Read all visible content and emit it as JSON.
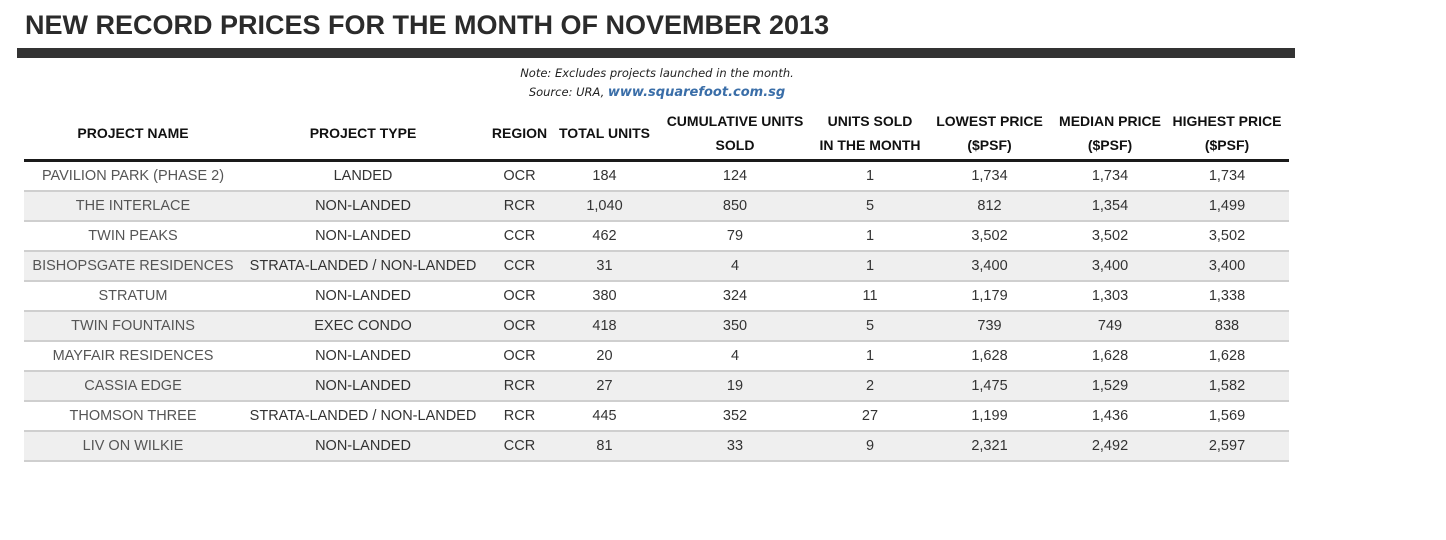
{
  "title": "NEW RECORD PRICES FOR THE MONTH OF NOVEMBER 2013",
  "note": "Note: Excludes projects launched in the month.",
  "source_prefix": "Source: URA,",
  "source_site": "www.squarefoot.com.sg",
  "headers": {
    "project_name": "PROJECT NAME",
    "project_type": "PROJECT TYPE",
    "region": "REGION",
    "total_units": "TOTAL UNITS",
    "cumulative_line1": "CUMULATIVE UNITS",
    "cumulative_line2": "SOLD",
    "month_line1": "UNITS SOLD",
    "month_line2": "IN THE MONTH",
    "lowest_line1": "LOWEST PRICE",
    "lowest_line2": "($PSF)",
    "median_line1": "MEDIAN PRICE",
    "median_line2": "($PSF)",
    "highest_line1": "HIGHEST PRICE",
    "highest_line2": "($PSF)"
  },
  "rows": [
    {
      "name": "PAVILION PARK (PHASE 2)",
      "type": "LANDED",
      "region": "OCR",
      "total": "184",
      "cumulative": "124",
      "month": "1",
      "lowest": "1,734",
      "median": "1,734",
      "highest": "1,734"
    },
    {
      "name": "THE INTERLACE",
      "type": "NON-LANDED",
      "region": "RCR",
      "total": "1,040",
      "cumulative": "850",
      "month": "5",
      "lowest": "812",
      "median": "1,354",
      "highest": "1,499"
    },
    {
      "name": "TWIN PEAKS",
      "type": "NON-LANDED",
      "region": "CCR",
      "total": "462",
      "cumulative": "79",
      "month": "1",
      "lowest": "3,502",
      "median": "3,502",
      "highest": "3,502"
    },
    {
      "name": "BISHOPSGATE RESIDENCES",
      "type": "STRATA-LANDED / NON-LANDED",
      "region": "CCR",
      "total": "31",
      "cumulative": "4",
      "month": "1",
      "lowest": "3,400",
      "median": "3,400",
      "highest": "3,400"
    },
    {
      "name": "STRATUM",
      "type": "NON-LANDED",
      "region": "OCR",
      "total": "380",
      "cumulative": "324",
      "month": "11",
      "lowest": "1,179",
      "median": "1,303",
      "highest": "1,338"
    },
    {
      "name": "TWIN FOUNTAINS",
      "type": "EXEC CONDO",
      "region": "OCR",
      "total": "418",
      "cumulative": "350",
      "month": "5",
      "lowest": "739",
      "median": "749",
      "highest": "838"
    },
    {
      "name": "MAYFAIR RESIDENCES",
      "type": "NON-LANDED",
      "region": "OCR",
      "total": "20",
      "cumulative": "4",
      "month": "1",
      "lowest": "1,628",
      "median": "1,628",
      "highest": "1,628"
    },
    {
      "name": "CASSIA EDGE",
      "type": "NON-LANDED",
      "region": "RCR",
      "total": "27",
      "cumulative": "19",
      "month": "2",
      "lowest": "1,475",
      "median": "1,529",
      "highest": "1,582"
    },
    {
      "name": "THOMSON THREE",
      "type": "STRATA-LANDED / NON-LANDED",
      "region": "RCR",
      "total": "445",
      "cumulative": "352",
      "month": "27",
      "lowest": "1,199",
      "median": "1,436",
      "highest": "1,569"
    },
    {
      "name": "LIV ON WILKIE",
      "type": "NON-LANDED",
      "region": "CCR",
      "total": "81",
      "cumulative": "33",
      "month": "9",
      "lowest": "2,321",
      "median": "2,492",
      "highest": "2,597"
    }
  ]
}
